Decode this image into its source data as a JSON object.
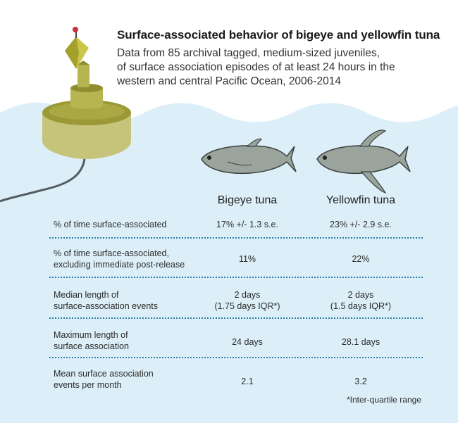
{
  "header": {
    "title": "Surface-associated behavior of bigeye and yellowfin tuna",
    "subtitle_lines": [
      "Data from 85 archival tagged, medium-sized juveniles,",
      "of surface association episodes of at least 24 hours in the",
      "western and central Pacific Ocean, 2006-2014"
    ]
  },
  "columns": [
    "Bigeye tuna",
    "Yellowfin tuna"
  ],
  "rows": [
    {
      "label": [
        "% of time surface-associated"
      ],
      "bigeye": [
        "17% +/- 1.3 s.e."
      ],
      "yellowfin": [
        "23% +/- 2.9 s.e."
      ]
    },
    {
      "label": [
        "% of time surface-associated,",
        "excluding immediate post-release"
      ],
      "bigeye": [
        "11%"
      ],
      "yellowfin": [
        "22%"
      ]
    },
    {
      "label": [
        "Median length of",
        "surface-association events"
      ],
      "bigeye": [
        "2 days",
        "(1.75 days IQR*)"
      ],
      "yellowfin": [
        "2 days",
        "(1.5 days IQR*)"
      ]
    },
    {
      "label": [
        "Maximum length of",
        "surface association"
      ],
      "bigeye": [
        "24 days"
      ],
      "yellowfin": [
        "28.1 days"
      ]
    },
    {
      "label": [
        "Mean surface association",
        "events per month"
      ],
      "bigeye": [
        "2.1"
      ],
      "yellowfin": [
        "3.2"
      ]
    }
  ],
  "footnote": "*Inter-quartile range",
  "colors": {
    "water": "#dceff8",
    "buoy": "#c5c47a",
    "buoy_dark": "#8f8d2e",
    "fish": "#9aa39c",
    "divider": "#2a7ea8"
  },
  "icons": [
    "fad-buoy-icon",
    "bigeye-tuna-icon",
    "yellowfin-tuna-icon"
  ]
}
